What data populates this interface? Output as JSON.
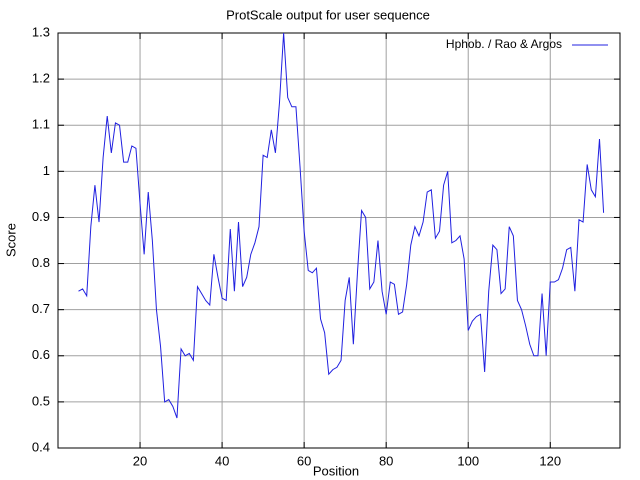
{
  "chart_data": {
    "type": "line",
    "title": "ProtScale output for user sequence",
    "x_label": "Position",
    "y_label": "Score",
    "xlim": [
      0,
      137
    ],
    "ylim": [
      0.4,
      1.3
    ],
    "xticks": [
      20,
      40,
      60,
      80,
      100,
      120
    ],
    "yticks": [
      0.4,
      0.5,
      0.6,
      0.7,
      0.8,
      0.9,
      1,
      1.1,
      1.2,
      1.3
    ],
    "grid": true,
    "legend": "top-right",
    "series": [
      {
        "name": "Hphob. /  Rao  & Argos",
        "color": "#2020e0",
        "x": [
          5,
          6,
          7,
          8,
          9,
          10,
          11,
          12,
          13,
          14,
          15,
          16,
          17,
          18,
          19,
          20,
          21,
          22,
          23,
          24,
          25,
          26,
          27,
          28,
          29,
          30,
          31,
          32,
          33,
          34,
          35,
          36,
          37,
          38,
          39,
          40,
          41,
          42,
          43,
          44,
          45,
          46,
          47,
          48,
          49,
          50,
          51,
          52,
          53,
          54,
          55,
          56,
          57,
          58,
          59,
          60,
          61,
          62,
          63,
          64,
          65,
          66,
          67,
          68,
          69,
          70,
          71,
          72,
          73,
          74,
          75,
          76,
          77,
          78,
          79,
          80,
          81,
          82,
          83,
          84,
          85,
          86,
          87,
          88,
          89,
          90,
          91,
          92,
          93,
          94,
          95,
          96,
          97,
          98,
          99,
          100,
          101,
          102,
          103,
          104,
          105,
          106,
          107,
          108,
          109,
          110,
          111,
          112,
          113,
          114,
          115,
          116,
          117,
          118,
          119,
          120,
          121,
          122,
          123,
          124,
          125,
          126,
          127,
          128,
          129,
          130,
          131,
          132,
          133
        ],
        "values": [
          0.74,
          0.745,
          0.73,
          0.88,
          0.97,
          0.89,
          1.03,
          1.12,
          1.04,
          1.105,
          1.1,
          1.02,
          1.02,
          1.055,
          1.05,
          0.93,
          0.82,
          0.955,
          0.85,
          0.7,
          0.62,
          0.5,
          0.505,
          0.49,
          0.465,
          0.615,
          0.6,
          0.605,
          0.59,
          0.75,
          0.735,
          0.72,
          0.71,
          0.82,
          0.77,
          0.725,
          0.72,
          0.875,
          0.74,
          0.89,
          0.75,
          0.77,
          0.82,
          0.845,
          0.88,
          1.035,
          1.03,
          1.09,
          1.04,
          1.15,
          1.3,
          1.16,
          1.14,
          1.14,
          1.01,
          0.87,
          0.785,
          0.78,
          0.79,
          0.68,
          0.65,
          0.56,
          0.57,
          0.575,
          0.59,
          0.72,
          0.77,
          0.625,
          0.78,
          0.915,
          0.9,
          0.745,
          0.76,
          0.85,
          0.74,
          0.69,
          0.76,
          0.755,
          0.69,
          0.695,
          0.755,
          0.84,
          0.88,
          0.86,
          0.89,
          0.955,
          0.96,
          0.855,
          0.87,
          0.97,
          1.0,
          0.845,
          0.85,
          0.86,
          0.81,
          0.655,
          0.675,
          0.685,
          0.69,
          0.565,
          0.74,
          0.84,
          0.83,
          0.735,
          0.745,
          0.88,
          0.86,
          0.72,
          0.7,
          0.665,
          0.625,
          0.6,
          0.6,
          0.735,
          0.6,
          0.76,
          0.76,
          0.765,
          0.79,
          0.83,
          0.835,
          0.74,
          0.895,
          0.89,
          1.015,
          0.96,
          0.945,
          1.07,
          0.91
        ]
      }
    ]
  }
}
